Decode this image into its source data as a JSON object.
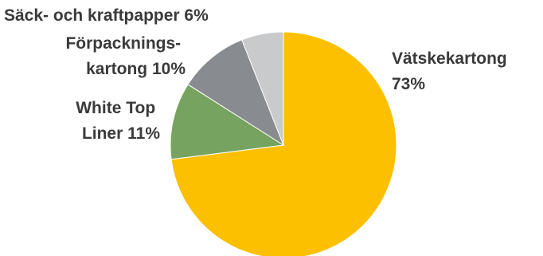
{
  "chart_data": {
    "type": "pie",
    "start_angle_deg": 0,
    "direction": "clockwise",
    "slices": [
      {
        "name": "Vätskekartong",
        "value": 73,
        "label_lines": [
          "Vätskekartong",
          "73%"
        ],
        "color": "#FCC000"
      },
      {
        "name": "White Top Liner",
        "value": 11,
        "label_lines": [
          "White Top",
          "Liner 11%"
        ],
        "color": "#76A35F"
      },
      {
        "name": "Förpackningskartong",
        "value": 10,
        "label_lines": [
          "Förpacknings-",
          "kartong 10%"
        ],
        "color": "#888C91"
      },
      {
        "name": "Säck- och kraftpapper",
        "value": 6,
        "label_lines": [
          "Säck- och kraftpapper 6%"
        ],
        "color": "#C8CACC"
      }
    ]
  }
}
